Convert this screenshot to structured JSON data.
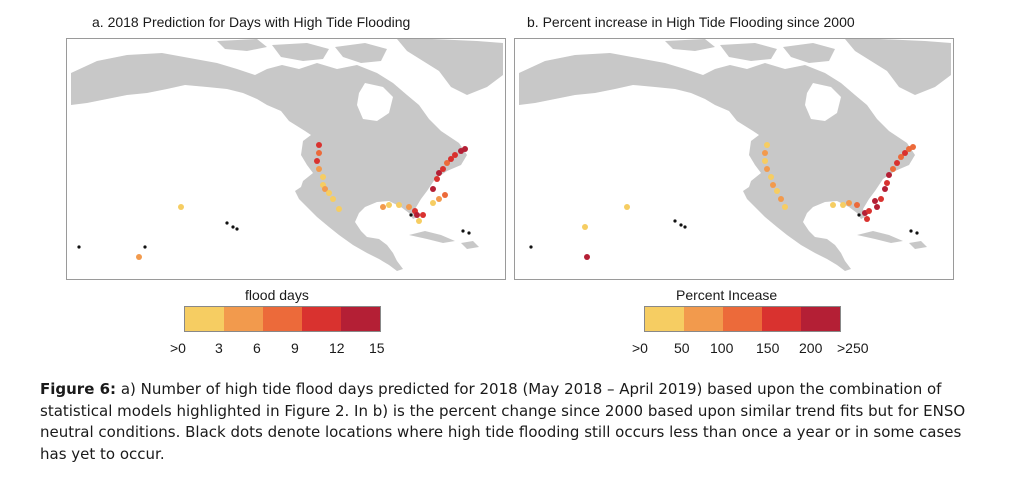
{
  "panel_a": {
    "title": "a. 2018 Prediction for Days with High Tide Flooding",
    "legend_title": "flood days",
    "legend_ticks": [
      ">0",
      "3",
      "6",
      "9",
      "12",
      "15"
    ],
    "legend_colors": [
      "#f6cd62",
      "#f29a4d",
      "#ec6a3a",
      "#d9322f",
      "#b41f35"
    ]
  },
  "panel_b": {
    "title": "b. Percent increase in High Tide Flooding since 2000",
    "legend_title": "Percent Incease",
    "legend_ticks": [
      ">0",
      "50",
      "100",
      "150",
      "200",
      ">250"
    ],
    "legend_colors": [
      "#f6cd62",
      "#f29a4d",
      "#ec6a3a",
      "#d9322f",
      "#b41f35"
    ]
  },
  "colors": {
    "land": "#c8c8c8",
    "water": "#ffffff",
    "no_flooding_marker": "#111111"
  },
  "caption": {
    "label": "Figure 6:",
    "text": " a) Number of high tide flood days predicted for 2018 (May 2018 – April 2019) based upon the combination of statistical models highlighted in Figure 2.  In b) is the percent change since 2000 based upon similar trend fits but for ENSO neutral conditions.  Black dots denote locations where high tide flooding still occurs less than once a year or in some cases has yet to occur."
  }
}
